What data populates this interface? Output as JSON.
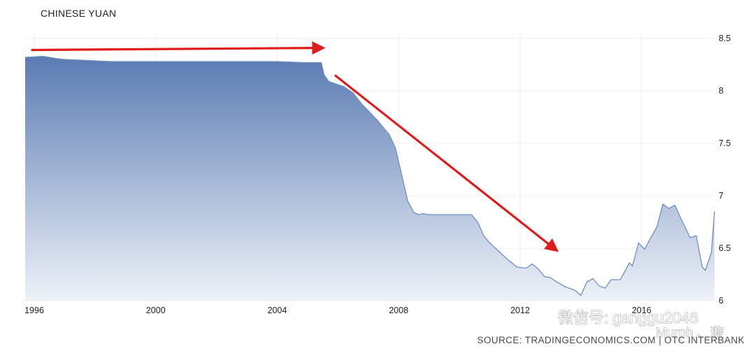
{
  "chart_data": {
    "type": "area",
    "title": "CHINESE YUAN",
    "xlabel": "",
    "ylabel": "",
    "xlim": [
      1995.7,
      2018.4
    ],
    "ylim": [
      6.0,
      8.5
    ],
    "x_ticks": [
      1996,
      2000,
      2004,
      2008,
      2012,
      2016
    ],
    "x_tick_labels": [
      "1996",
      "2000",
      "2004",
      "2008",
      "2012",
      "2016"
    ],
    "y_ticks": [
      6,
      6.5,
      7,
      7.5,
      8,
      8.5
    ],
    "y_tick_labels": [
      "6",
      "6.5",
      "7",
      "7.5",
      "8",
      "8.5"
    ],
    "grid": true,
    "legend": "none",
    "colors": {
      "area_top": "#5b7bb3",
      "area_bottom": "#eef2f8",
      "line": "#6f8fc4",
      "arrow": "#e01b1b"
    },
    "series": [
      {
        "x": [
          1995.7,
          1996.3,
          1996.7,
          1997.0,
          1997.8,
          1998.5,
          2000.0,
          2002.0,
          2004.0,
          2004.9,
          2005.45,
          2005.55,
          2005.7,
          2005.9,
          2006.2,
          2006.5,
          2006.8,
          2007.1,
          2007.3,
          2007.5,
          2007.7,
          2007.9,
          2008.1,
          2008.3,
          2008.5,
          2008.65,
          2008.8,
          2009.0,
          2009.5,
          2010.0,
          2010.4,
          2010.6,
          2010.8,
          2011.0,
          2011.3,
          2011.6,
          2011.9,
          2012.2,
          2012.4,
          2012.6,
          2012.8,
          2013.0,
          2013.2,
          2013.5,
          2013.8,
          2014.0,
          2014.2,
          2014.4,
          2014.6,
          2014.8,
          2015.0,
          2015.3,
          2015.6,
          2015.7,
          2015.9,
          2016.1,
          2016.3,
          2016.5,
          2016.7,
          2016.9,
          2017.1,
          2017.3,
          2017.6,
          2017.8,
          2018.0,
          2018.1,
          2018.3,
          2018.4
        ],
        "y": [
          8.32,
          8.33,
          8.31,
          8.3,
          8.29,
          8.28,
          8.28,
          8.28,
          8.28,
          8.27,
          8.27,
          8.15,
          8.09,
          8.07,
          8.04,
          7.98,
          7.87,
          7.78,
          7.72,
          7.65,
          7.58,
          7.45,
          7.2,
          6.95,
          6.84,
          6.82,
          6.83,
          6.82,
          6.82,
          6.82,
          6.82,
          6.75,
          6.62,
          6.55,
          6.47,
          6.39,
          6.32,
          6.31,
          6.35,
          6.3,
          6.23,
          6.22,
          6.18,
          6.13,
          6.1,
          6.05,
          6.18,
          6.21,
          6.14,
          6.12,
          6.2,
          6.2,
          6.36,
          6.33,
          6.55,
          6.49,
          6.6,
          6.7,
          6.92,
          6.88,
          6.91,
          6.78,
          6.6,
          6.62,
          6.32,
          6.29,
          6.46,
          6.85
        ]
      }
    ],
    "annotations": [
      {
        "type": "arrow",
        "from": [
          1995.9,
          8.39
        ],
        "to": [
          2005.5,
          8.41
        ]
      },
      {
        "type": "arrow",
        "from": [
          2005.9,
          8.15
        ],
        "to": [
          2013.2,
          6.48
        ]
      }
    ],
    "source": "SOURCE: TRADINGECONOMICS.COM | OTC INTERBANK"
  },
  "watermark": {
    "line1": "微信号: ganggu2046",
    "line2": "Murph 、璇"
  }
}
